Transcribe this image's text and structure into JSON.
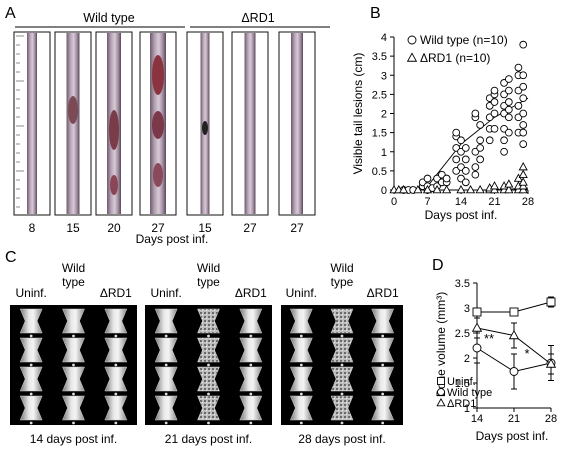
{
  "panels": {
    "A": {
      "letter": "A",
      "group_wt": "Wild type",
      "group_rd1": "ΔRD1",
      "photo_days": [
        "8",
        "15",
        "20",
        "27",
        "15",
        "27",
        "27"
      ],
      "xlabel": "Days post inf."
    },
    "C": {
      "letter": "C",
      "columns": [
        "Uninf.",
        "Wild type",
        "ΔRD1",
        "Uninf.",
        "Wild type",
        "ΔRD1",
        "Uninf.",
        "Wild type",
        "ΔRD1"
      ],
      "captions": [
        "14 days post inf.",
        "21 days post inf.",
        "28 days post inf."
      ]
    }
  },
  "chart_data": [
    {
      "panel": "B",
      "type": "scatter",
      "xlabel": "Days post inf.",
      "ylabel": "Visible tail lesions (cm)",
      "xlim": [
        0,
        28
      ],
      "ylim": [
        0,
        4
      ],
      "xticks": [
        "0",
        "7",
        "14",
        "21",
        "28"
      ],
      "yticks": [
        "0",
        "0.5",
        "1",
        "1.5",
        "2",
        "2.5",
        "3",
        "3.5",
        "4"
      ],
      "legend_position": "top-left",
      "series": [
        {
          "name": "Wild type (n=10)",
          "marker": "circle",
          "points": [
            [
              2,
              0
            ],
            [
              3,
              0
            ],
            [
              4,
              0
            ],
            [
              6,
              0.1
            ],
            [
              6,
              0.2
            ],
            [
              7,
              0
            ],
            [
              7,
              0.1
            ],
            [
              7,
              0.3
            ],
            [
              8,
              0.05
            ],
            [
              9,
              0.1
            ],
            [
              9,
              0.3
            ],
            [
              10,
              0.2
            ],
            [
              10,
              0.4
            ],
            [
              11,
              0.2
            ],
            [
              11,
              0.3
            ],
            [
              13,
              0.5
            ],
            [
              13,
              0.8
            ],
            [
              13,
              1.1
            ],
            [
              13,
              1.4
            ],
            [
              13,
              1.5
            ],
            [
              14,
              0.3
            ],
            [
              14,
              0.6
            ],
            [
              14,
              1.0
            ],
            [
              14,
              1.3
            ],
            [
              15,
              0.2
            ],
            [
              15,
              0.5
            ],
            [
              15,
              0.8
            ],
            [
              15,
              1.1
            ],
            [
              17,
              0.4
            ],
            [
              17,
              0.6
            ],
            [
              17,
              1.0
            ],
            [
              17,
              1.9
            ],
            [
              17,
              2.0
            ],
            [
              18,
              0.8
            ],
            [
              18,
              1.1
            ],
            [
              18,
              1.3
            ],
            [
              18,
              1.7
            ],
            [
              20,
              1.3
            ],
            [
              20,
              1.6
            ],
            [
              20,
              1.9
            ],
            [
              20,
              2.2
            ],
            [
              20,
              2.4
            ],
            [
              21,
              1.6
            ],
            [
              21,
              2.0
            ],
            [
              21,
              2.3
            ],
            [
              21,
              2.5
            ],
            [
              21,
              2.6
            ],
            [
              23,
              1.0
            ],
            [
              23,
              1.3
            ],
            [
              23,
              1.6
            ],
            [
              23,
              2.0
            ],
            [
              23,
              2.2
            ],
            [
              23,
              2.5
            ],
            [
              23,
              2.8
            ],
            [
              24,
              1.5
            ],
            [
              24,
              1.9
            ],
            [
              24,
              2.1
            ],
            [
              24,
              2.3
            ],
            [
              24,
              2.6
            ],
            [
              24,
              2.9
            ],
            [
              26,
              1.5
            ],
            [
              26,
              1.9
            ],
            [
              26,
              2.2
            ],
            [
              26,
              2.6
            ],
            [
              26,
              3.0
            ],
            [
              26,
              3.2
            ],
            [
              27,
              1.2
            ],
            [
              27,
              1.5
            ],
            [
              27,
              1.7
            ],
            [
              27,
              2.0
            ],
            [
              27,
              2.4
            ],
            [
              27,
              2.7
            ],
            [
              27,
              3.0
            ],
            [
              27,
              3.8
            ]
          ],
          "trend": [
            [
              7,
              0.1
            ],
            [
              14,
              1.2
            ],
            [
              21,
              1.9
            ],
            [
              28,
              2.4
            ]
          ]
        },
        {
          "name": "ΔRD1 (n=10)",
          "marker": "triangle",
          "points": [
            [
              0,
              0
            ],
            [
              1,
              0
            ],
            [
              2,
              0
            ],
            [
              5,
              0
            ],
            [
              7,
              0
            ],
            [
              9,
              0
            ],
            [
              11,
              0
            ],
            [
              14,
              0
            ],
            [
              16,
              0
            ],
            [
              18,
              0
            ],
            [
              20,
              0
            ],
            [
              20,
              0.05
            ],
            [
              21,
              0
            ],
            [
              21,
              0.1
            ],
            [
              23,
              0
            ],
            [
              23,
              0.1
            ],
            [
              24,
              0
            ],
            [
              24,
              0.15
            ],
            [
              26,
              0
            ],
            [
              26,
              0.1
            ],
            [
              26,
              0.3
            ],
            [
              27,
              0
            ],
            [
              27,
              0.1
            ],
            [
              27,
              0.2
            ],
            [
              27,
              0.4
            ],
            [
              27,
              0.6
            ]
          ],
          "trend": [
            [
              0,
              0
            ],
            [
              14,
              0
            ],
            [
              21,
              0
            ],
            [
              28,
              0.05
            ]
          ]
        }
      ]
    },
    {
      "panel": "D",
      "type": "line",
      "xlabel": "Days post inf.",
      "ylabel": "Bone volume (mm³)",
      "xlim": [
        14,
        28
      ],
      "ylim": [
        1,
        3.5
      ],
      "xticks": [
        "14",
        "21",
        "28"
      ],
      "yticks": [
        "1",
        "1.5",
        "2",
        "2.5",
        "3",
        "3.5"
      ],
      "legend_position": "bottom-left",
      "significance": [
        "**",
        "*"
      ],
      "series": [
        {
          "name": "Uninf.",
          "marker": "square",
          "x": [
            14,
            21,
            28
          ],
          "y": [
            2.92,
            2.92,
            3.12
          ],
          "err": [
            0.05,
            0.05,
            0.1
          ]
        },
        {
          "name": "Wild type",
          "marker": "circle",
          "x": [
            14,
            21,
            28
          ],
          "y": [
            2.2,
            1.73,
            1.9
          ],
          "err": [
            0.3,
            0.35,
            0.35
          ]
        },
        {
          "name": "ΔRD1",
          "marker": "triangle",
          "x": [
            14,
            21,
            28
          ],
          "y": [
            2.6,
            2.45,
            1.88
          ],
          "err": [
            0.2,
            0.25,
            0.2
          ]
        }
      ]
    }
  ],
  "colors": {
    "photo_frame": "#111111",
    "scan_bg": "#000000",
    "ink": "#000000"
  }
}
